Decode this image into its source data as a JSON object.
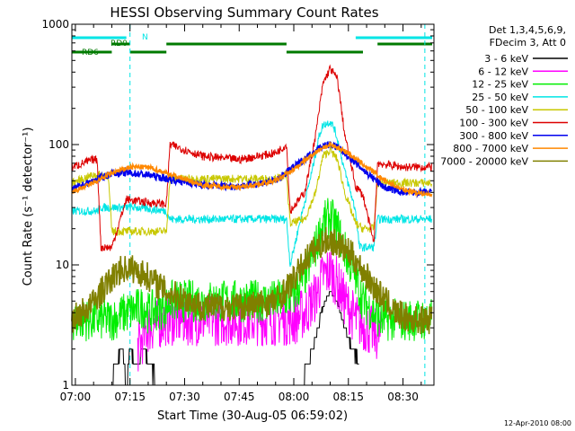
{
  "chart_data": {
    "type": "line",
    "title": "HESSI Observing Summary Count Rates",
    "xlabel": "Start Time (30-Aug-05 06:59:02)",
    "ylabel": "Count Rate (s⁻¹ detector⁻¹)",
    "y_scale": "log",
    "ylim": [
      1,
      1000
    ],
    "xlim": [
      "06:59:02",
      "08:38:30"
    ],
    "x_ticks": [
      "07:00",
      "07:15",
      "07:30",
      "07:45",
      "08:00",
      "08:15",
      "08:30"
    ],
    "y_ticks": [
      "1",
      "10",
      "100",
      "1000"
    ],
    "date_stamp": "12-Apr-2010 08:00",
    "legend": {
      "placement": "right",
      "header": [
        "Det 1,3,4,5,6,9,",
        "FDecim 3, Att 0"
      ]
    },
    "flags": [
      {
        "name": "N",
        "color": "#00e5e5",
        "intervals": [
          [
            "06:59",
            "07:14"
          ],
          [
            "08:17",
            "08:38"
          ]
        ]
      },
      {
        "name": "RD0",
        "color": "#007a00",
        "intervals": [
          [
            "07:10",
            "07:15"
          ],
          [
            "07:25",
            "07:58"
          ],
          [
            "08:23",
            "08:38"
          ]
        ]
      },
      {
        "name": "RD6",
        "color": "#007a00",
        "intervals": [
          [
            "06:59",
            "07:10"
          ],
          [
            "07:15",
            "07:25"
          ],
          [
            "07:58",
            "08:19"
          ]
        ]
      }
    ],
    "gap_lines": [
      "07:15",
      "08:36"
    ],
    "series": [
      {
        "name": "3 - 6 keV",
        "color": "#000000",
        "x": [
          "07:10",
          "07:11",
          "07:13",
          "07:14",
          "07:15",
          "07:17",
          "07:19",
          "07:20",
          "07:23",
          "08:02",
          "08:04",
          "08:06",
          "08:08",
          "08:10",
          "08:12",
          "08:14",
          "08:16",
          "08:18"
        ],
        "y": [
          1.0,
          1.5,
          2.0,
          1.0,
          2.0,
          1.5,
          2.0,
          1.5,
          1.0,
          1.0,
          1.5,
          2.5,
          4.5,
          6.0,
          5.0,
          3.0,
          2.0,
          1.5
        ]
      },
      {
        "name": "6 - 12 keV",
        "color": "#ff00ff",
        "x": [
          "07:17",
          "07:20",
          "07:25",
          "07:28",
          "07:35",
          "07:45",
          "07:55",
          "08:00",
          "08:03",
          "08:06",
          "08:08",
          "08:10",
          "08:12",
          "08:14",
          "08:17",
          "08:20",
          "08:24"
        ],
        "y": [
          2.0,
          3.0,
          3.5,
          3.5,
          3.5,
          3.5,
          3.5,
          3.5,
          4.0,
          5.5,
          8.0,
          9.0,
          7.0,
          5.0,
          3.5,
          3.0,
          2.5
        ]
      },
      {
        "name": "12 - 25 keV",
        "color": "#00ee00",
        "x": [
          "06:59",
          "07:10",
          "07:14",
          "07:19",
          "07:20",
          "07:25",
          "07:26",
          "07:35",
          "07:45",
          "07:55",
          "08:00",
          "08:03",
          "08:06",
          "08:08",
          "08:10",
          "08:12",
          "08:14",
          "08:17",
          "08:19",
          "08:22",
          "08:24",
          "08:30",
          "08:38"
        ],
        "y": [
          3.5,
          3.5,
          4.0,
          4.5,
          4.0,
          4.5,
          5.0,
          5.0,
          5.0,
          5.0,
          5.5,
          8.0,
          14,
          22,
          25,
          20,
          13,
          8.0,
          5.0,
          4.0,
          3.5,
          3.5,
          3.5
        ]
      },
      {
        "name": "25 - 50 keV",
        "color": "#00e5e5",
        "x": [
          "06:59",
          "07:06",
          "07:07",
          "07:15",
          "07:17",
          "07:25",
          "07:26",
          "07:35",
          "07:45",
          "07:55",
          "07:58",
          "07:59",
          "08:02",
          "08:05",
          "08:07",
          "08:08",
          "08:10",
          "08:11",
          "08:12",
          "08:14",
          "08:17",
          "08:18",
          "08:22",
          "08:23",
          "08:30",
          "08:38"
        ],
        "y": [
          28,
          28,
          30,
          30,
          30,
          28,
          24,
          24,
          24,
          24,
          24,
          10,
          25,
          60,
          120,
          145,
          155,
          140,
          110,
          60,
          28,
          14,
          14,
          24,
          24,
          24
        ]
      },
      {
        "name": "50 - 100 keV",
        "color": "#c8c800",
        "x": [
          "06:59",
          "07:05",
          "07:06",
          "07:09",
          "07:10",
          "07:15",
          "07:20",
          "07:25",
          "07:26",
          "07:35",
          "07:45",
          "07:55",
          "07:58",
          "07:59",
          "08:03",
          "08:06",
          "08:08",
          "08:10",
          "08:12",
          "08:14",
          "08:17",
          "08:19",
          "08:22",
          "08:23",
          "08:30",
          "08:38"
        ],
        "y": [
          48,
          56,
          56,
          56,
          19,
          19,
          19,
          19,
          52,
          52,
          52,
          52,
          55,
          22,
          24,
          40,
          80,
          90,
          75,
          40,
          22,
          20,
          20,
          48,
          48,
          48
        ]
      },
      {
        "name": "100 - 300 keV",
        "color": "#dd0000",
        "x": [
          "06:59",
          "07:05",
          "07:06",
          "07:07",
          "07:10",
          "07:14",
          "07:20",
          "07:25",
          "07:26",
          "07:35",
          "07:45",
          "07:55",
          "07:58",
          "07:59",
          "08:03",
          "08:06",
          "08:08",
          "08:10",
          "08:12",
          "08:14",
          "08:17",
          "08:19",
          "08:22",
          "08:23",
          "08:30",
          "08:38"
        ],
        "y": [
          65,
          75,
          75,
          14,
          14,
          35,
          33,
          32,
          100,
          80,
          75,
          85,
          100,
          28,
          40,
          120,
          320,
          430,
          350,
          120,
          45,
          38,
          15,
          70,
          65,
          65
        ]
      },
      {
        "name": "300 - 800 keV",
        "color": "#0000ee",
        "x": [
          "06:59",
          "07:05",
          "07:10",
          "07:15",
          "07:20",
          "07:25",
          "07:35",
          "07:45",
          "07:55",
          "08:00",
          "08:05",
          "08:08",
          "08:10",
          "08:12",
          "08:15",
          "08:20",
          "08:25",
          "08:30",
          "08:38"
        ],
        "y": [
          42,
          50,
          58,
          58,
          56,
          52,
          46,
          45,
          50,
          65,
          85,
          98,
          100,
          95,
          80,
          58,
          44,
          40,
          40
        ]
      },
      {
        "name": "800 - 7000 keV",
        "color": "#ff8800",
        "x": [
          "06:59",
          "07:05",
          "07:10",
          "07:15",
          "07:20",
          "07:25",
          "07:35",
          "07:45",
          "07:55",
          "08:00",
          "08:05",
          "08:08",
          "08:10",
          "08:12",
          "08:15",
          "08:20",
          "08:25",
          "08:30",
          "08:38"
        ],
        "y": [
          40,
          48,
          58,
          65,
          65,
          58,
          46,
          44,
          50,
          62,
          82,
          95,
          98,
          95,
          85,
          65,
          50,
          42,
          38
        ]
      },
      {
        "name": "7000 - 20000 keV",
        "color": "#808000",
        "x": [
          "06:59",
          "07:04",
          "07:08",
          "07:12",
          "07:15",
          "07:20",
          "07:25",
          "07:35",
          "07:45",
          "07:55",
          "08:00",
          "08:04",
          "08:08",
          "08:10",
          "08:12",
          "08:16",
          "08:20",
          "08:24",
          "08:28",
          "08:32",
          "08:38"
        ],
        "y": [
          3.5,
          4.5,
          6.5,
          9.0,
          9.5,
          8.0,
          6.0,
          4.5,
          4.5,
          5.0,
          7.5,
          12,
          15.5,
          16,
          15,
          12,
          8,
          5.5,
          4,
          3.5,
          3.5
        ]
      }
    ]
  }
}
